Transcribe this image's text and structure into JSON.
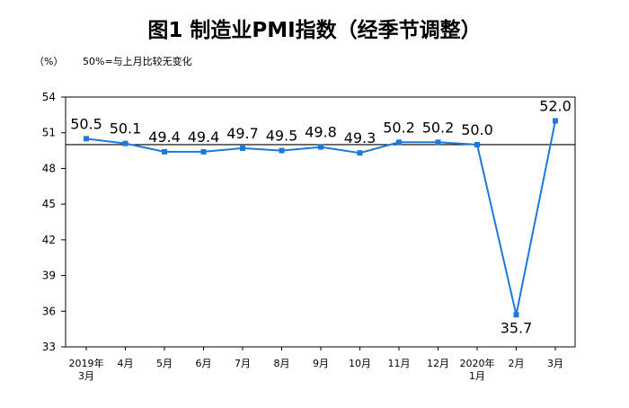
{
  "chart_data": {
    "type": "line",
    "title": "图1  制造业PMI指数（经季节调整）",
    "unit_label": "（%）",
    "note": "50%=与上月比较无变化",
    "categories": [
      [
        "2019年",
        "3月"
      ],
      [
        "4月"
      ],
      [
        "5月"
      ],
      [
        "6月"
      ],
      [
        "7月"
      ],
      [
        "8月"
      ],
      [
        "9月"
      ],
      [
        "10月"
      ],
      [
        "11月"
      ],
      [
        "12月"
      ],
      [
        "2020年",
        "1月"
      ],
      [
        "2月"
      ],
      [
        "3月"
      ]
    ],
    "series": [
      {
        "values": [
          50.5,
          50.1,
          49.4,
          49.4,
          49.7,
          49.5,
          49.8,
          49.3,
          50.2,
          50.2,
          50.0,
          35.7,
          52.0
        ],
        "labels": [
          "50.5",
          "50.1",
          "49.4",
          "49.4",
          "49.7",
          "49.5",
          "49.8",
          "49.3",
          "50.2",
          "50.2",
          "50.0",
          "35.7",
          "52.0"
        ],
        "color": "#1f78d8"
      }
    ],
    "yticks": [
      33,
      36,
      39,
      42,
      45,
      48,
      51,
      54
    ],
    "ylim": [
      33,
      54
    ],
    "reference_line": 50,
    "reference_line_color": "#000000"
  }
}
